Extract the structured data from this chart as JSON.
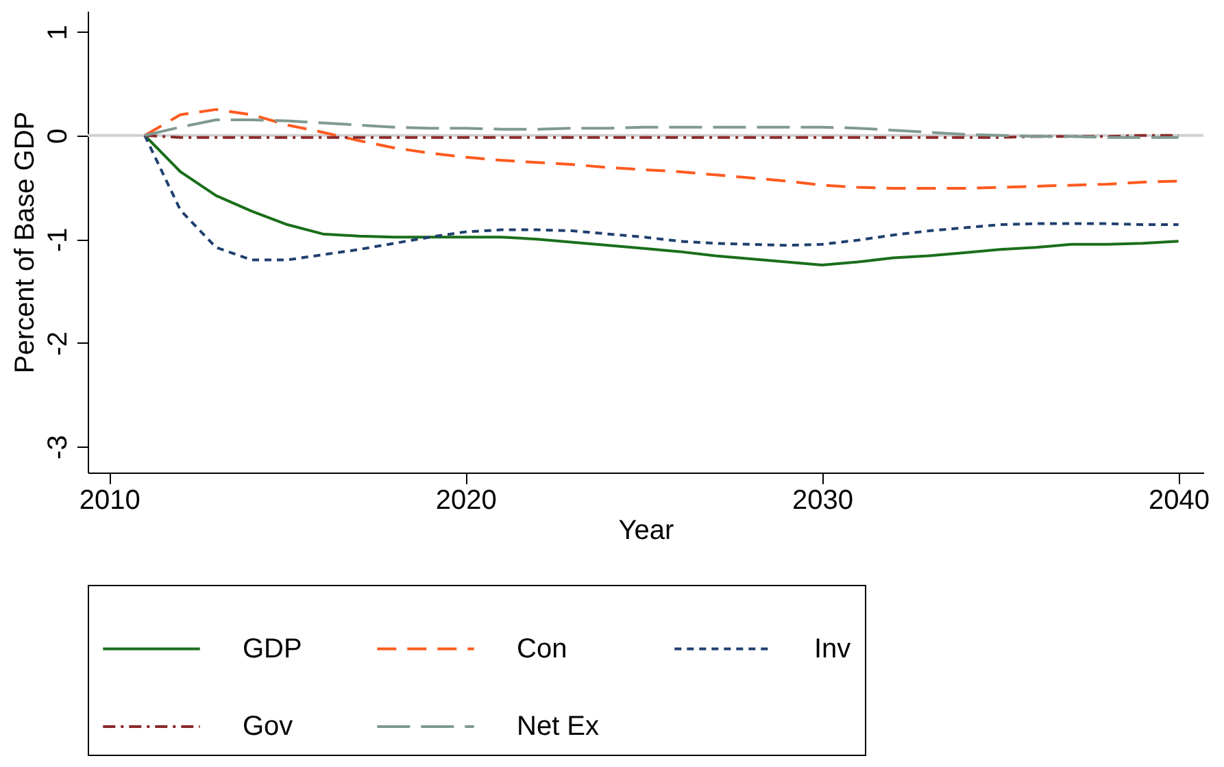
{
  "chart_data": {
    "type": "line",
    "xlabel": "Year",
    "ylabel": "Percent of Base GDP",
    "x": [
      2011,
      2012,
      2013,
      2014,
      2015,
      2016,
      2017,
      2018,
      2019,
      2020,
      2021,
      2022,
      2023,
      2024,
      2025,
      2026,
      2027,
      2028,
      2029,
      2030,
      2031,
      2032,
      2033,
      2034,
      2035,
      2036,
      2037,
      2038,
      2039,
      2040
    ],
    "series": [
      {
        "name": "GDP",
        "color": "#1a6e1a",
        "line_style": "solid",
        "values": [
          0,
          -0.35,
          -0.58,
          -0.73,
          -0.86,
          -0.95,
          -0.97,
          -0.98,
          -0.98,
          -0.98,
          -0.98,
          -1.0,
          -1.03,
          -1.06,
          -1.09,
          -1.12,
          -1.16,
          -1.19,
          -1.22,
          -1.25,
          -1.22,
          -1.18,
          -1.16,
          -1.13,
          -1.1,
          -1.08,
          -1.05,
          -1.05,
          -1.04,
          -1.02
        ]
      },
      {
        "name": "Con",
        "color": "#ff5a1f",
        "line_style": "dashed",
        "values": [
          0,
          0.2,
          0.25,
          0.2,
          0.1,
          0.03,
          -0.05,
          -0.12,
          -0.17,
          -0.21,
          -0.24,
          -0.26,
          -0.28,
          -0.31,
          -0.33,
          -0.35,
          -0.38,
          -0.41,
          -0.44,
          -0.48,
          -0.5,
          -0.51,
          -0.51,
          -0.51,
          -0.5,
          -0.49,
          -0.48,
          -0.47,
          -0.45,
          -0.44
        ]
      },
      {
        "name": "Inv",
        "color": "#1f3f6e",
        "line_style": "dotted",
        "values": [
          0,
          -0.72,
          -1.08,
          -1.2,
          -1.2,
          -1.15,
          -1.1,
          -1.04,
          -0.98,
          -0.93,
          -0.91,
          -0.91,
          -0.92,
          -0.95,
          -0.98,
          -1.02,
          -1.04,
          -1.05,
          -1.06,
          -1.05,
          -1.01,
          -0.96,
          -0.92,
          -0.89,
          -0.86,
          -0.85,
          -0.85,
          -0.85,
          -0.86,
          -0.86
        ]
      },
      {
        "name": "Gov",
        "color": "#8b2a2a",
        "line_style": "dashdot",
        "values": [
          0,
          -0.02,
          -0.02,
          -0.02,
          -0.02,
          -0.02,
          -0.02,
          -0.02,
          -0.02,
          -0.02,
          -0.02,
          -0.02,
          -0.02,
          -0.02,
          -0.02,
          -0.02,
          -0.02,
          -0.02,
          -0.02,
          -0.02,
          -0.02,
          -0.02,
          -0.02,
          -0.02,
          -0.02,
          -0.01,
          -0.01,
          -0.01,
          0,
          0
        ]
      },
      {
        "name": "Net Ex",
        "color": "#7f9a90",
        "line_style": "longdash",
        "values": [
          0,
          0.08,
          0.15,
          0.15,
          0.14,
          0.12,
          0.1,
          0.08,
          0.07,
          0.07,
          0.06,
          0.06,
          0.07,
          0.07,
          0.08,
          0.08,
          0.08,
          0.08,
          0.08,
          0.08,
          0.07,
          0.05,
          0.03,
          0.01,
          0,
          -0.01,
          -0.01,
          -0.02,
          -0.02,
          -0.02
        ]
      }
    ],
    "xlim": [
      2009.4,
      2040.7
    ],
    "xticks": [
      2010,
      2020,
      2030,
      2040
    ],
    "ylim": [
      -3.25,
      1.2
    ],
    "yticks": [
      -3,
      -2,
      -1,
      0,
      1
    ],
    "ref_lines": [
      {
        "axis": "y",
        "value": 0,
        "color": "#d0d0d0"
      }
    ],
    "grid": false,
    "legend": "bottom"
  }
}
